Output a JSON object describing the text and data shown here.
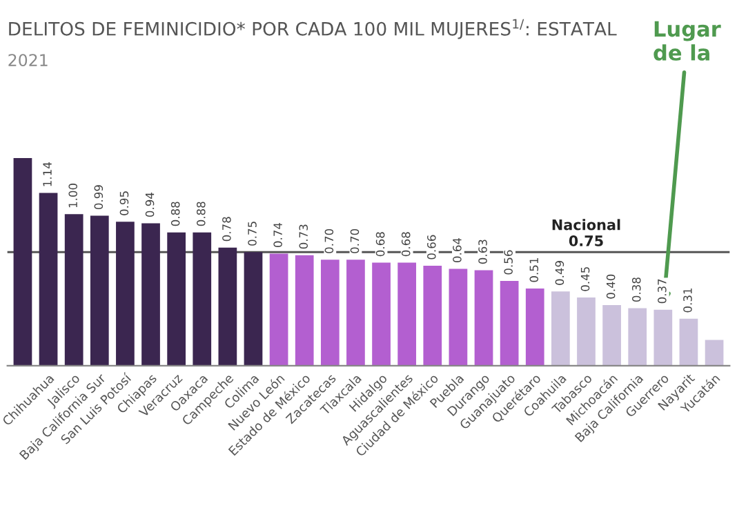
{
  "chart_data": {
    "type": "bar",
    "title": "DELITOS DE FEMINICIDIO* POR CADA 100 MIL MUJERES$^{1/}$: ESTATAL",
    "subtitle": "2021",
    "categories": [
      null,
      "Chihuahua",
      "Jalisco",
      "Baja California Sur",
      "San Luis Potosí",
      "Chiapas",
      "Veracruz",
      "Oaxaca",
      "Campeche",
      "Colima",
      "Nuevo León",
      "Estado de México",
      "Zacatecas",
      "Tlaxcala",
      "Hidalgo",
      "Aguascalientes",
      "Ciudad de México",
      "Puebla",
      "Durango",
      "Guanajuato",
      "Querétaro",
      "Coahuila",
      "Tabasco",
      "Michoacán",
      "Baja California",
      "Guerrero",
      "Nayarit",
      "Yucatán"
    ],
    "values": [
      1.37,
      1.14,
      1.0,
      0.99,
      0.95,
      0.94,
      0.88,
      0.88,
      0.78,
      0.75,
      0.74,
      0.73,
      0.7,
      0.7,
      0.68,
      0.68,
      0.66,
      0.64,
      0.63,
      0.56,
      0.51,
      0.49,
      0.45,
      0.4,
      0.38,
      0.37,
      0.31,
      0.17
    ],
    "value_labels": [
      null,
      "1.14",
      "1.00",
      "0.99",
      "0.95",
      "0.94",
      "0.88",
      "0.88",
      "0.78",
      "0.75",
      "0.74",
      "0.73",
      "0.70",
      "0.70",
      "0.68",
      "0.68",
      "0.66",
      "0.64",
      "0.63",
      "0.56",
      "0.51",
      "0.49",
      "0.45",
      "0.40",
      "0.38",
      "0.37",
      "0.31",
      null
    ],
    "colors": [
      "#3b2650",
      "#3b2650",
      "#3b2650",
      "#3b2650",
      "#3b2650",
      "#3b2650",
      "#3b2650",
      "#3b2650",
      "#3b2650",
      "#3b2650",
      "#b35fd0",
      "#b35fd0",
      "#b35fd0",
      "#b35fd0",
      "#b35fd0",
      "#b35fd0",
      "#b35fd0",
      "#b35fd0",
      "#b35fd0",
      "#b35fd0",
      "#b35fd0",
      "#cbc1dc",
      "#cbc1dc",
      "#cbc1dc",
      "#cbc1dc",
      "#cbc1dc",
      "#cbc1dc",
      "#cbc1dc"
    ],
    "ref_lines": [
      {
        "axis": "y",
        "value": 0.75,
        "label": "Nacional\n0.75",
        "color": "#555555"
      }
    ],
    "annotations": [
      {
        "text": "Lugar\nde la",
        "x": "Guerrero",
        "y": 0.37
      }
    ],
    "grid": false,
    "legend": false
  }
}
